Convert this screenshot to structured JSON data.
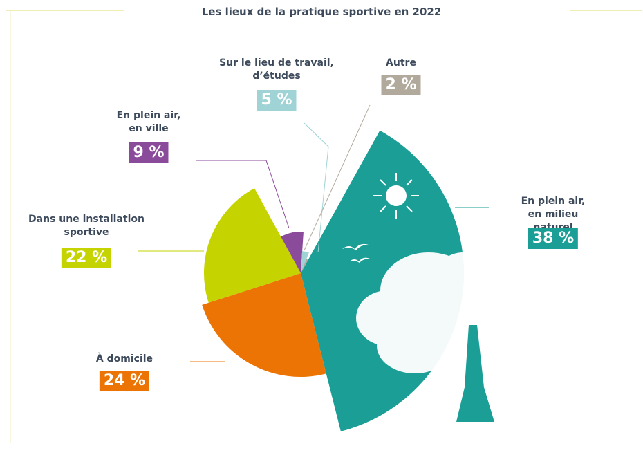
{
  "chart_data": {
    "type": "pie",
    "title": "Les lieux de la pratique sportive en 2022",
    "categories": [
      "En plein air,\nen milieu naturel",
      "À domicile",
      "Dans une installation\nsportive",
      "En plein air,\nen ville",
      "Sur le lieu de travail,\nd’études",
      "Autre"
    ],
    "values": [
      38,
      24,
      22,
      9,
      5,
      2
    ],
    "value_labels": [
      "38 %",
      "24 %",
      "22 %",
      "9 %",
      "5 %",
      "2 %"
    ],
    "colors": [
      "#1a9e96",
      "#ec7404",
      "#c5d300",
      "#8b4b9b",
      "#9fd3d6",
      "#b1a99c"
    ]
  }
}
